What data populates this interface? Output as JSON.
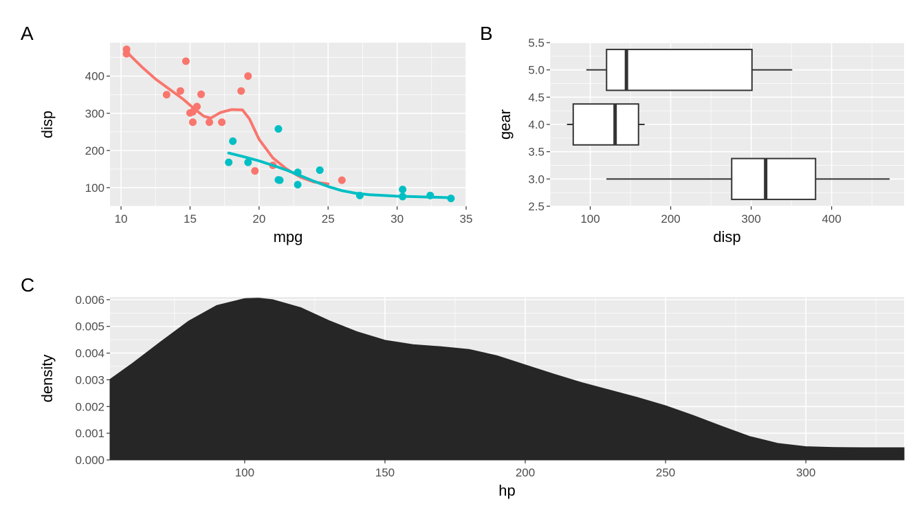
{
  "chart_data": [
    {
      "panel": "A",
      "type": "scatter",
      "xlabel": "mpg",
      "ylabel": "disp",
      "xlim": [
        9.2,
        35.0
      ],
      "ylim": [
        50,
        490
      ],
      "xticks": [
        10,
        15,
        20,
        25,
        30,
        35
      ],
      "yticks": [
        100,
        200,
        300,
        400
      ],
      "grid": true,
      "legend": "none",
      "colors": {
        "group1": "#F8766D",
        "group2": "#00BFC4"
      },
      "series": [
        {
          "color_key": "group1",
          "points": [
            [
              10.4,
              472
            ],
            [
              10.4,
              460
            ],
            [
              13.3,
              350
            ],
            [
              14.3,
              360
            ],
            [
              14.7,
              440
            ],
            [
              15.0,
              301
            ],
            [
              15.2,
              304
            ],
            [
              15.2,
              276
            ],
            [
              15.5,
              318
            ],
            [
              15.8,
              351
            ],
            [
              16.4,
              276
            ],
            [
              17.3,
              276
            ],
            [
              18.7,
              360
            ],
            [
              19.2,
              400
            ],
            [
              19.7,
              145
            ],
            [
              21.0,
              160
            ],
            [
              26.0,
              120
            ]
          ],
          "smooth": [
            [
              10.4,
              465
            ],
            [
              11.5,
              425
            ],
            [
              12.5,
              392
            ],
            [
              13.5,
              365
            ],
            [
              14.5,
              338
            ],
            [
              15.3,
              312
            ],
            [
              16.0,
              292
            ],
            [
              16.5,
              287
            ],
            [
              17.2,
              302
            ],
            [
              18.0,
              310
            ],
            [
              18.8,
              309
            ],
            [
              19.3,
              285
            ],
            [
              20.0,
              230
            ],
            [
              21.0,
              180
            ],
            [
              22.0,
              150
            ],
            [
              23.0,
              128
            ],
            [
              24.0,
              115
            ],
            [
              25.0,
              110
            ]
          ]
        },
        {
          "color_key": "group2",
          "points": [
            [
              17.8,
              168
            ],
            [
              18.1,
              225
            ],
            [
              19.2,
              168
            ],
            [
              21.4,
              258
            ],
            [
              21.4,
              121
            ],
            [
              21.5,
              120
            ],
            [
              22.8,
              141
            ],
            [
              22.8,
              108
            ],
            [
              24.4,
              147
            ],
            [
              27.3,
              79
            ],
            [
              30.4,
              95
            ],
            [
              30.4,
              76
            ],
            [
              32.4,
              79
            ],
            [
              33.9,
              71
            ]
          ],
          "smooth": [
            [
              17.8,
              193
            ],
            [
              19.0,
              182
            ],
            [
              20.0,
              172
            ],
            [
              21.0,
              160
            ],
            [
              22.0,
              147
            ],
            [
              23.0,
              132
            ],
            [
              24.0,
              117
            ],
            [
              25.0,
              103
            ],
            [
              26.0,
              92
            ],
            [
              27.0,
              85
            ],
            [
              28.0,
              81
            ],
            [
              29.0,
              79
            ],
            [
              30.0,
              77
            ],
            [
              31.0,
              76
            ],
            [
              32.0,
              75
            ],
            [
              33.0,
              74
            ],
            [
              33.9,
              73
            ]
          ]
        }
      ]
    },
    {
      "panel": "B",
      "type": "boxplot",
      "orientation": "horizontal",
      "xlabel": "disp",
      "ylabel": "gear",
      "xlim": [
        50,
        490
      ],
      "ylim": [
        2.5,
        5.5
      ],
      "xticks": [
        100,
        200,
        300,
        400
      ],
      "yticks": [
        "2.5",
        "3.0",
        "3.5",
        "4.0",
        "4.5",
        "5.0",
        "5.5"
      ],
      "grid": true,
      "boxes": [
        {
          "gear": 3.0,
          "whisker_low": 120.1,
          "q1": 275.8,
          "median": 318.0,
          "q3": 380.0,
          "whisker_high": 472.0
        },
        {
          "gear": 4.0,
          "whisker_low": 71.1,
          "q1": 78.85,
          "median": 130.9,
          "q3": 160.0,
          "whisker_high": 167.6
        },
        {
          "gear": 5.0,
          "whisker_low": 95.1,
          "q1": 120.3,
          "median": 145.0,
          "q3": 301.0,
          "whisker_high": 351.0
        }
      ]
    },
    {
      "panel": "C",
      "type": "area",
      "xlabel": "hp",
      "ylabel": "density",
      "xlim": [
        52,
        335
      ],
      "ylim": [
        0,
        0.0061
      ],
      "xticks": [
        100,
        150,
        200,
        250,
        300
      ],
      "yticks": [
        "0.000",
        "0.001",
        "0.002",
        "0.003",
        "0.004",
        "0.005",
        "0.006"
      ],
      "grid": true,
      "fill": "#262626",
      "x": [
        52,
        60,
        70,
        80,
        90,
        100,
        105,
        110,
        120,
        130,
        140,
        150,
        160,
        170,
        180,
        190,
        200,
        210,
        220,
        230,
        240,
        250,
        260,
        270,
        280,
        290,
        300,
        310,
        320,
        335
      ],
      "y": [
        0.00302,
        0.00362,
        0.00442,
        0.0052,
        0.00578,
        0.00604,
        0.00606,
        0.006,
        0.0057,
        0.00522,
        0.0048,
        0.00448,
        0.00432,
        0.00424,
        0.00414,
        0.0039,
        0.00356,
        0.00322,
        0.0029,
        0.00262,
        0.00234,
        0.00203,
        0.00166,
        0.00126,
        0.00088,
        0.00062,
        0.0005,
        0.00047,
        0.00046,
        0.00046
      ]
    }
  ],
  "panel_labels": {
    "a": "A",
    "b": "B",
    "c": "C"
  }
}
